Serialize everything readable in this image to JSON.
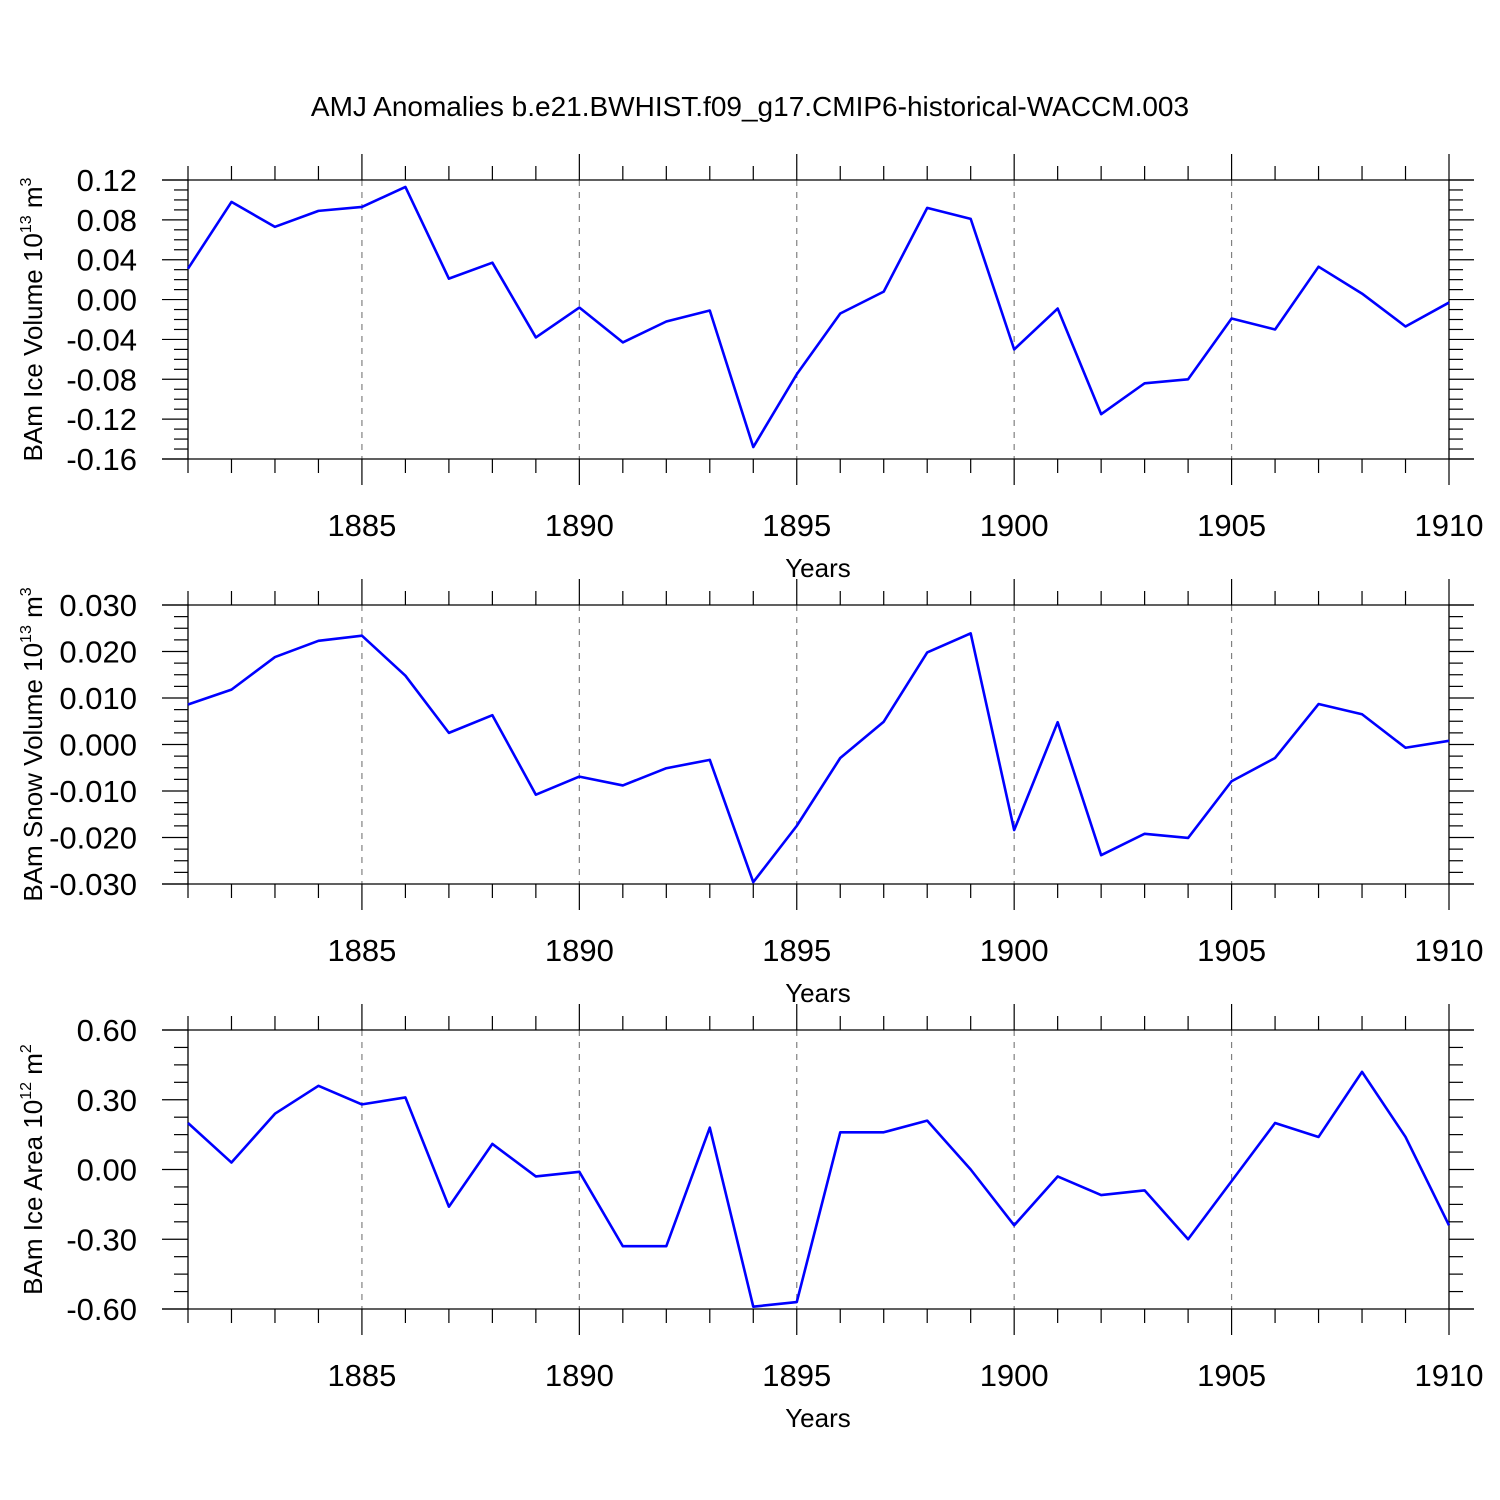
{
  "title": "AMJ Anomalies b.e21.BWHIST.f09_g17.CMIP6-historical-WACCM.003",
  "chart_data": [
    {
      "type": "line",
      "ylabel_main": "BAm Ice Volume 10",
      "ylabel_exp": "13",
      "ylabel_unit": " m",
      "ylabel_unit_exp": "3",
      "xlabel": "Years",
      "xlim": [
        1881,
        1910
      ],
      "ylim": [
        -0.16,
        0.12
      ],
      "x_ticks": [
        "1885",
        "1890",
        "1895",
        "1900",
        "1905",
        "1910"
      ],
      "y_ticks": [
        "0.12",
        "0.08",
        "0.04",
        "0.00",
        "-0.04",
        "-0.08",
        "-0.12",
        "-0.16"
      ],
      "y_tick_values": [
        0.12,
        0.08,
        0.04,
        0.0,
        -0.04,
        -0.08,
        -0.12,
        -0.16
      ],
      "grid": "vertical dashed at major x ticks",
      "series": [
        {
          "color": "#0000ff",
          "x": [
            1881,
            1882,
            1883,
            1884,
            1885,
            1886,
            1887,
            1888,
            1889,
            1890,
            1891,
            1892,
            1893,
            1894,
            1895,
            1896,
            1897,
            1898,
            1899,
            1900,
            1901,
            1902,
            1903,
            1904,
            1905,
            1906,
            1907,
            1908,
            1909,
            1910
          ],
          "values": [
            0.031,
            0.098,
            0.073,
            0.089,
            0.093,
            0.113,
            0.021,
            0.037,
            -0.038,
            -0.008,
            -0.043,
            -0.022,
            -0.011,
            -0.148,
            -0.075,
            -0.014,
            0.008,
            0.092,
            0.081,
            -0.05,
            -0.009,
            -0.115,
            -0.084,
            -0.08,
            -0.019,
            -0.03,
            0.033,
            0.006,
            -0.027,
            -0.003
          ]
        }
      ]
    },
    {
      "type": "line",
      "ylabel_main": "BAm Snow Volume 10",
      "ylabel_exp": "13",
      "ylabel_unit": " m",
      "ylabel_unit_exp": "3",
      "xlabel": "Years",
      "xlim": [
        1881,
        1910
      ],
      "ylim": [
        -0.03,
        0.03
      ],
      "x_ticks": [
        "1885",
        "1890",
        "1895",
        "1900",
        "1905",
        "1910"
      ],
      "y_ticks": [
        "0.030",
        "0.020",
        "0.010",
        "0.000",
        "-0.010",
        "-0.020",
        "-0.030"
      ],
      "y_tick_values": [
        0.03,
        0.02,
        0.01,
        0.0,
        -0.01,
        -0.02,
        -0.03
      ],
      "grid": "vertical dashed at major x ticks",
      "series": [
        {
          "color": "#0000ff",
          "x": [
            1881,
            1882,
            1883,
            1884,
            1885,
            1886,
            1887,
            1888,
            1889,
            1890,
            1891,
            1892,
            1893,
            1894,
            1895,
            1896,
            1897,
            1898,
            1899,
            1900,
            1901,
            1902,
            1903,
            1904,
            1905,
            1906,
            1907,
            1908,
            1909,
            1910
          ],
          "values": [
            0.0086,
            0.0118,
            0.0188,
            0.0223,
            0.0234,
            0.0148,
            0.0025,
            0.0063,
            -0.0108,
            -0.0069,
            -0.0088,
            -0.0051,
            -0.0033,
            -0.0296,
            -0.0175,
            -0.0029,
            0.0049,
            0.0198,
            0.0239,
            -0.0184,
            0.0048,
            -0.0238,
            -0.0192,
            -0.0201,
            -0.0079,
            -0.0029,
            0.0087,
            0.0065,
            -0.0007,
            0.0008
          ]
        }
      ]
    },
    {
      "type": "line",
      "ylabel_main": "BAm Ice Area 10",
      "ylabel_exp": "12",
      "ylabel_unit": " m",
      "ylabel_unit_exp": "2",
      "xlabel": "Years",
      "xlim": [
        1881,
        1910
      ],
      "ylim": [
        -0.6,
        0.6
      ],
      "x_ticks": [
        "1885",
        "1890",
        "1895",
        "1900",
        "1905",
        "1910"
      ],
      "y_ticks": [
        "0.60",
        "0.30",
        "0.00",
        "-0.30",
        "-0.60"
      ],
      "y_tick_values": [
        0.6,
        0.3,
        0.0,
        -0.3,
        -0.6
      ],
      "grid": "vertical dashed at major x ticks",
      "series": [
        {
          "color": "#0000ff",
          "x": [
            1881,
            1882,
            1883,
            1884,
            1885,
            1886,
            1887,
            1888,
            1889,
            1890,
            1891,
            1892,
            1893,
            1894,
            1895,
            1896,
            1897,
            1898,
            1899,
            1900,
            1901,
            1902,
            1903,
            1904,
            1905,
            1906,
            1907,
            1908,
            1909,
            1910
          ],
          "values": [
            0.2,
            0.03,
            0.24,
            0.36,
            0.28,
            0.31,
            -0.16,
            0.11,
            -0.03,
            -0.01,
            -0.33,
            -0.33,
            0.18,
            -0.59,
            -0.57,
            0.16,
            0.16,
            0.21,
            0.0,
            -0.24,
            -0.03,
            -0.11,
            -0.09,
            -0.3,
            -0.05,
            0.2,
            0.14,
            0.42,
            0.14,
            -0.24
          ]
        }
      ]
    }
  ]
}
